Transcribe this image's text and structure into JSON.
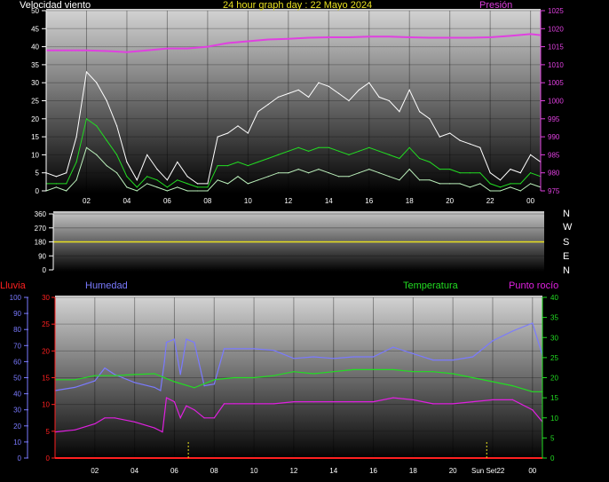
{
  "header": {
    "title": "24 hour graph day : 22 Mayo 2024",
    "left_title": "Velocidad viento",
    "right_title": "Presión"
  },
  "colors": {
    "background": "#000000",
    "wind_axis": "#ffffff",
    "pressure": "#e040e0",
    "wind_gust": "#ffffff",
    "wind_avg": "#22dd22",
    "wind_min": "#bbf0bb",
    "direction": "#e8e020",
    "rain": "#ff2020",
    "humidity": "#7a7aff",
    "temperature": "#22dd22",
    "dewpoint": "#e020e0",
    "sunmarker": "#e8e020"
  },
  "chart_data": [
    {
      "type": "line",
      "title": "24 hour graph day : 22 Mayo 2024",
      "y_left_label": "Velocidad viento",
      "y_right_label": "Presión",
      "x_tick_labels": [
        "02",
        "04",
        "06",
        "08",
        "10",
        "12",
        "14",
        "16",
        "18",
        "20",
        "22",
        "00"
      ],
      "x_hours": [
        2,
        4,
        6,
        8,
        10,
        12,
        14,
        16,
        18,
        20,
        22,
        24
      ],
      "xlim": [
        0,
        24.5
      ],
      "ylim_left": [
        0,
        50
      ],
      "yticks_left": [
        0,
        5,
        10,
        15,
        20,
        25,
        30,
        35,
        40,
        45,
        50
      ],
      "ylim_right": [
        975,
        1025
      ],
      "yticks_right": [
        975,
        980,
        985,
        990,
        995,
        1000,
        1005,
        1010,
        1015,
        1020,
        1025
      ],
      "grid": true,
      "series": [
        {
          "key": "pressure",
          "axis": "right",
          "width": 2,
          "x": [
            0,
            1,
            2,
            3,
            4,
            5,
            6,
            7,
            8,
            9,
            10,
            11,
            12,
            13,
            14,
            15,
            16,
            17,
            18,
            19,
            20,
            21,
            22,
            23,
            24,
            24.5
          ],
          "y": [
            1014,
            1014,
            1014,
            1013.8,
            1013.5,
            1014,
            1014.5,
            1014.5,
            1015,
            1016,
            1016.5,
            1017,
            1017.2,
            1017.5,
            1017.6,
            1017.6,
            1017.8,
            1017.8,
            1017.6,
            1017.5,
            1017.5,
            1017.5,
            1017.6,
            1018,
            1018.5,
            1018.2
          ]
        },
        {
          "key": "wind_gust",
          "axis": "left",
          "width": 1,
          "x": [
            0,
            0.5,
            1,
            1.5,
            2,
            2.5,
            3,
            3.5,
            4,
            4.5,
            5,
            5.5,
            6,
            6.5,
            7,
            7.5,
            8,
            8.5,
            9,
            9.5,
            10,
            10.5,
            11,
            11.5,
            12,
            12.5,
            13,
            13.5,
            14,
            14.5,
            15,
            15.5,
            16,
            16.5,
            17,
            17.5,
            18,
            18.5,
            19,
            19.5,
            20,
            20.5,
            21,
            21.5,
            22,
            22.5,
            23,
            23.5,
            24,
            24.5
          ],
          "y": [
            5,
            4,
            5,
            15,
            33,
            30,
            25,
            18,
            8,
            3,
            10,
            6,
            3,
            8,
            4,
            2,
            2,
            15,
            16,
            18,
            16,
            22,
            24,
            26,
            27,
            28,
            26,
            30,
            29,
            27,
            25,
            28,
            30,
            26,
            25,
            22,
            28,
            22,
            20,
            15,
            16,
            14,
            13,
            12,
            5,
            3,
            6,
            5,
            10,
            8
          ]
        },
        {
          "key": "wind_avg",
          "axis": "left",
          "width": 1,
          "x": [
            0,
            0.5,
            1,
            1.5,
            2,
            2.5,
            3,
            3.5,
            4,
            4.5,
            5,
            5.5,
            6,
            6.5,
            7,
            7.5,
            8,
            8.5,
            9,
            9.5,
            10,
            10.5,
            11,
            11.5,
            12,
            12.5,
            13,
            13.5,
            14,
            14.5,
            15,
            15.5,
            16,
            16.5,
            17,
            17.5,
            18,
            18.5,
            19,
            19.5,
            20,
            20.5,
            21,
            21.5,
            22,
            22.5,
            23,
            23.5,
            24,
            24.5
          ],
          "y": [
            2,
            2,
            2,
            8,
            20,
            18,
            14,
            10,
            4,
            1,
            4,
            3,
            1,
            3,
            2,
            1,
            1,
            7,
            7,
            8,
            7,
            8,
            9,
            10,
            11,
            12,
            11,
            12,
            12,
            11,
            10,
            11,
            12,
            11,
            10,
            9,
            12,
            9,
            8,
            6,
            6,
            5,
            5,
            5,
            2,
            1,
            2,
            2,
            5,
            4
          ]
        },
        {
          "key": "wind_min",
          "axis": "left",
          "width": 1,
          "x": [
            0,
            0.5,
            1,
            1.5,
            2,
            2.5,
            3,
            3.5,
            4,
            4.5,
            5,
            5.5,
            6,
            6.5,
            7,
            7.5,
            8,
            8.5,
            9,
            9.5,
            10,
            10.5,
            11,
            11.5,
            12,
            12.5,
            13,
            13.5,
            14,
            14.5,
            15,
            15.5,
            16,
            16.5,
            17,
            17.5,
            18,
            18.5,
            19,
            19.5,
            20,
            20.5,
            21,
            21.5,
            22,
            22.5,
            23,
            23.5,
            24,
            24.5
          ],
          "y": [
            0,
            1,
            0,
            3,
            12,
            10,
            7,
            5,
            1,
            0,
            2,
            1,
            0,
            1,
            0,
            0,
            0,
            3,
            2,
            4,
            2,
            3,
            4,
            5,
            5,
            6,
            5,
            6,
            5,
            4,
            4,
            5,
            6,
            5,
            4,
            3,
            6,
            3,
            3,
            2,
            2,
            2,
            1,
            2,
            0,
            0,
            1,
            0,
            2,
            1
          ]
        }
      ]
    },
    {
      "type": "line",
      "title": "",
      "y_left_label": "",
      "y_right_label": "",
      "direction_labels": [
        "N",
        "W",
        "S",
        "E",
        "N"
      ],
      "ylim_left": [
        0,
        360
      ],
      "yticks_left": [
        0,
        90,
        180,
        270,
        360
      ],
      "xlim": [
        0,
        24.5
      ],
      "grid": true,
      "series": [
        {
          "key": "direction",
          "axis": "left",
          "width": 1.5,
          "x": [
            0,
            24.5
          ],
          "y": [
            180,
            180
          ]
        }
      ]
    },
    {
      "type": "line",
      "title": "",
      "left_label_outer": "Lluvia",
      "left_label_inner": "Humedad",
      "right_label_inner": "Temperatura",
      "right_label_outer": "Punto rocío",
      "x_tick_labels": [
        "02",
        "04",
        "06",
        "08",
        "10",
        "12",
        "14",
        "16",
        "18",
        "20",
        "22",
        "00"
      ],
      "x_hours": [
        2,
        4,
        6,
        8,
        10,
        12,
        14,
        16,
        18,
        20,
        22,
        24
      ],
      "sunset_label": "Sun Set22",
      "sunset_hour": 21.7,
      "sunrise_hour": 6.7,
      "xlim": [
        0,
        24.5
      ],
      "ylim_rain": [
        0,
        100
      ],
      "yticks_rain": [
        0,
        10,
        20,
        30,
        40,
        50,
        60,
        70,
        80,
        90,
        100
      ],
      "ylim_humidity": [
        0,
        30
      ],
      "yticks_humidity": [
        0,
        5,
        10,
        15,
        20,
        25,
        30
      ],
      "ylim_temp": [
        0,
        40
      ],
      "yticks_temp": [
        0,
        5,
        10,
        15,
        20,
        25,
        30,
        35,
        40
      ],
      "grid": true,
      "series": [
        {
          "key": "humidity",
          "axis": "rain",
          "width": 1.2,
          "x": [
            0,
            1,
            2,
            2.5,
            3,
            4,
            5,
            5.3,
            5.5,
            5.6,
            6,
            6.3,
            6.6,
            7,
            7.5,
            8,
            8.5,
            9,
            10,
            11,
            12,
            13,
            14,
            15,
            16,
            17,
            18,
            19,
            20,
            21,
            22,
            23,
            24,
            24.5
          ],
          "y": [
            42,
            44,
            48,
            56,
            52,
            47,
            44,
            42,
            60,
            72,
            74,
            52,
            74,
            72,
            45,
            46,
            68,
            68,
            68,
            67,
            62,
            63,
            62,
            63,
            63,
            69,
            65,
            61,
            61,
            63,
            73,
            79,
            84,
            64
          ]
        },
        {
          "key": "temperature",
          "axis": "temp",
          "width": 1.2,
          "x": [
            0,
            1,
            2,
            3,
            4,
            5,
            6,
            7,
            8,
            9,
            10,
            11,
            12,
            13,
            14,
            15,
            16,
            17,
            18,
            19,
            20,
            21,
            22,
            23,
            24,
            24.5
          ],
          "y": [
            19.5,
            19.5,
            20.5,
            20.5,
            20.8,
            21.0,
            19,
            17.5,
            19.5,
            20,
            20,
            20.5,
            21.5,
            21,
            21.5,
            22,
            22,
            22,
            21.5,
            21.5,
            21,
            20,
            19,
            18,
            16.5,
            16.5
          ]
        },
        {
          "key": "dewpoint",
          "axis": "temp",
          "width": 1.2,
          "x": [
            0,
            1,
            2,
            2.5,
            3,
            4,
            5,
            5.4,
            5.6,
            6,
            6.3,
            6.6,
            7,
            7.5,
            8,
            8.5,
            9,
            10,
            11,
            12,
            13,
            14,
            15,
            16,
            17,
            18,
            19,
            20,
            21,
            22,
            23,
            24,
            24.5
          ],
          "y": [
            6.5,
            7,
            8.5,
            10,
            10,
            9,
            7.5,
            6.5,
            15,
            14,
            10,
            13,
            12,
            10,
            10,
            13.5,
            13.5,
            13.5,
            13.5,
            14,
            14,
            14,
            14,
            14,
            15,
            14.5,
            13.5,
            13.5,
            14,
            14.5,
            14.5,
            12,
            9
          ]
        },
        {
          "key": "rain",
          "axis": "rain",
          "width": 2,
          "x": [
            0,
            24.5
          ],
          "y": [
            0,
            0
          ]
        }
      ]
    }
  ]
}
